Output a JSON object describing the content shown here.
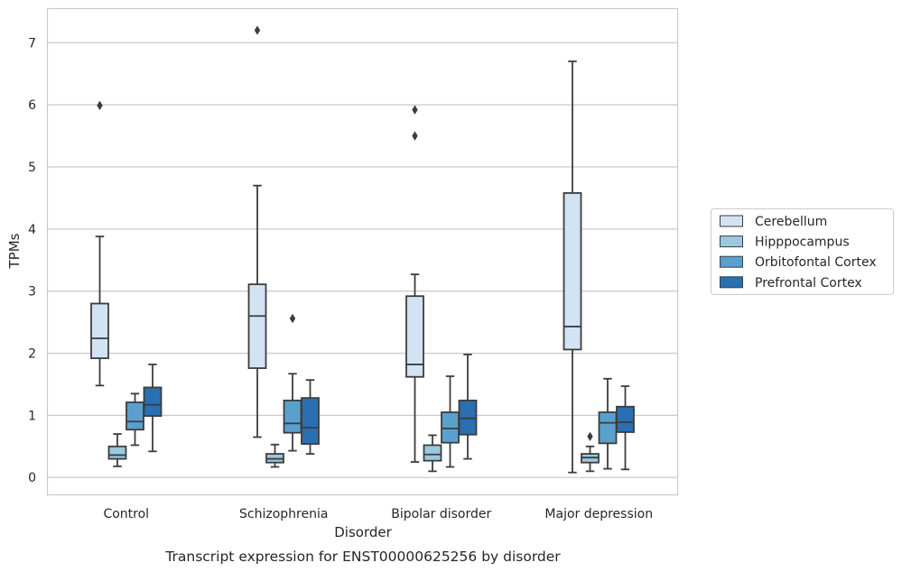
{
  "chart_data": {
    "type": "box",
    "xlabel": "Disorder",
    "ylabel": "TPMs",
    "caption": "Transcript expression for ENST00000625256 by disorder",
    "ylim": [
      -0.28,
      7.55
    ],
    "yticks": [
      0,
      1,
      2,
      3,
      4,
      5,
      6,
      7
    ],
    "grid": "horizontal",
    "legend_position": "right",
    "categories": [
      "Control",
      "Schizophrenia",
      "Bipolar disorder",
      "Major depression"
    ],
    "series": [
      {
        "name": "Cerebellum",
        "color": "#d2e3f3",
        "boxes": [
          {
            "whisker_low": 1.48,
            "q1": 1.92,
            "median": 2.24,
            "q3": 2.8,
            "whisker_high": 3.88,
            "outliers": [
              5.99
            ]
          },
          {
            "whisker_low": 0.65,
            "q1": 1.76,
            "median": 2.6,
            "q3": 3.11,
            "whisker_high": 4.7,
            "outliers": [
              7.2
            ]
          },
          {
            "whisker_low": 0.25,
            "q1": 1.62,
            "median": 1.82,
            "q3": 2.92,
            "whisker_high": 3.27,
            "outliers": [
              5.5,
              5.92
            ]
          },
          {
            "whisker_low": 0.08,
            "q1": 2.06,
            "median": 2.43,
            "q3": 4.58,
            "whisker_high": 6.7,
            "outliers": []
          }
        ]
      },
      {
        "name": "Hipppocampus",
        "color": "#9ac8e0",
        "boxes": [
          {
            "whisker_low": 0.18,
            "q1": 0.3,
            "median": 0.36,
            "q3": 0.5,
            "whisker_high": 0.7,
            "outliers": []
          },
          {
            "whisker_low": 0.17,
            "q1": 0.24,
            "median": 0.3,
            "q3": 0.38,
            "whisker_high": 0.53,
            "outliers": []
          },
          {
            "whisker_low": 0.1,
            "q1": 0.27,
            "median": 0.37,
            "q3": 0.52,
            "whisker_high": 0.68,
            "outliers": []
          },
          {
            "whisker_low": 0.1,
            "q1": 0.24,
            "median": 0.32,
            "q3": 0.38,
            "whisker_high": 0.5,
            "outliers": [
              0.66
            ]
          }
        ]
      },
      {
        "name": "Orbitofontal Cortex",
        "color": "#5aa0cd",
        "boxes": [
          {
            "whisker_low": 0.52,
            "q1": 0.77,
            "median": 0.9,
            "q3": 1.21,
            "whisker_high": 1.35,
            "outliers": []
          },
          {
            "whisker_low": 0.43,
            "q1": 0.72,
            "median": 0.87,
            "q3": 1.24,
            "whisker_high": 1.67,
            "outliers": [
              2.56
            ]
          },
          {
            "whisker_low": 0.17,
            "q1": 0.56,
            "median": 0.79,
            "q3": 1.05,
            "whisker_high": 1.63,
            "outliers": []
          },
          {
            "whisker_low": 0.14,
            "q1": 0.55,
            "median": 0.88,
            "q3": 1.05,
            "whisker_high": 1.59,
            "outliers": []
          }
        ]
      },
      {
        "name": "Prefrontal Cortex",
        "color": "#2a6fb1",
        "boxes": [
          {
            "whisker_low": 0.42,
            "q1": 0.99,
            "median": 1.17,
            "q3": 1.45,
            "whisker_high": 1.82,
            "outliers": []
          },
          {
            "whisker_low": 0.38,
            "q1": 0.54,
            "median": 0.8,
            "q3": 1.28,
            "whisker_high": 1.57,
            "outliers": []
          },
          {
            "whisker_low": 0.3,
            "q1": 0.69,
            "median": 0.95,
            "q3": 1.24,
            "whisker_high": 1.98,
            "outliers": []
          },
          {
            "whisker_low": 0.13,
            "q1": 0.73,
            "median": 0.89,
            "q3": 1.14,
            "whisker_high": 1.47,
            "outliers": []
          }
        ]
      }
    ]
  }
}
